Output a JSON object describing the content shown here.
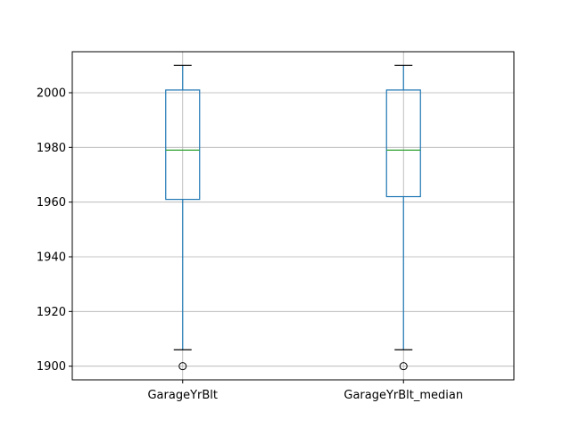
{
  "chart_data": {
    "type": "boxplot",
    "title": "",
    "xlabel": "",
    "ylabel": "",
    "ylim": [
      1895,
      2015
    ],
    "yticks": [
      1900,
      1920,
      1940,
      1960,
      1980,
      2000
    ],
    "grid": true,
    "categories": [
      "GarageYrBlt",
      "GarageYrBlt_median"
    ],
    "boxes": [
      {
        "label": "GarageYrBlt",
        "whisker_low": 1906,
        "q1": 1961,
        "median": 1979,
        "q3": 2001,
        "whisker_high": 2010,
        "outliers": [
          1900
        ]
      },
      {
        "label": "GarageYrBlt_median",
        "whisker_low": 1906,
        "q1": 1962,
        "median": 1979,
        "q3": 2001,
        "whisker_high": 2010,
        "outliers": [
          1900
        ]
      }
    ],
    "colors": {
      "box": "#1f77b4",
      "median": "#2ca02c",
      "cap": "#000000",
      "flier": "#000000",
      "grid": "#b0b0b0"
    }
  }
}
